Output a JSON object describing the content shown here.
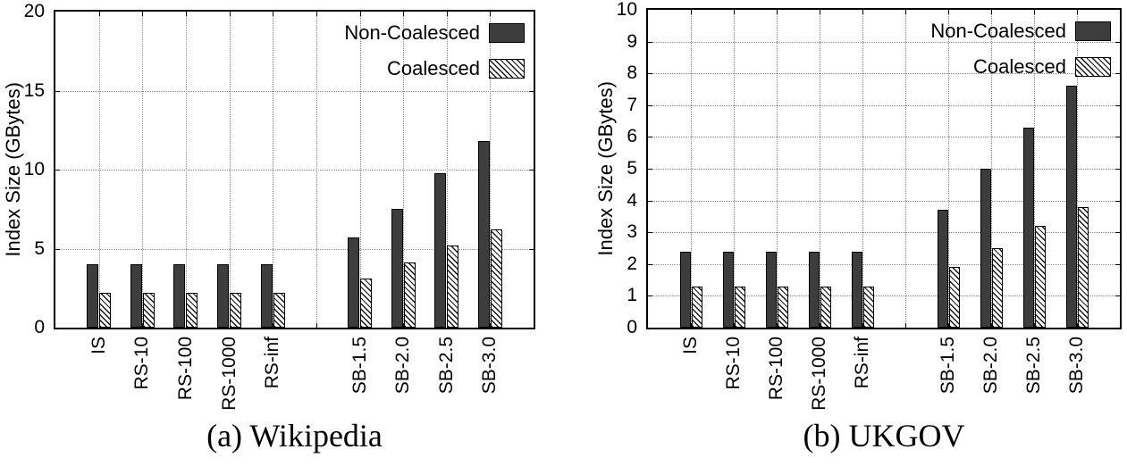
{
  "figure": {
    "background": "#ffffff",
    "legend": {
      "entries": [
        "Non-Coalesced",
        "Coalesced"
      ]
    }
  },
  "colors": {
    "bar_fill": "#3d3d3d",
    "bar_border": "#000000",
    "hatch_line": "#161616",
    "hatch_bg": "#ffffff",
    "grid_line": "#888888",
    "axis": "#000000",
    "text": "#000000"
  },
  "chart_data": [
    {
      "type": "bar",
      "title": "(a) Wikipedia",
      "xlabel": "",
      "ylabel": "Index Size (GBytes)",
      "ylim": [
        0,
        20
      ],
      "ytick_step": 5,
      "yticks": [
        0,
        5,
        10,
        15,
        20
      ],
      "grid": true,
      "legend_position": "top-right-inside",
      "categories": [
        "IS",
        "RS-10",
        "RS-100",
        "RS-1000",
        "RS-inf",
        "SB-1.5",
        "SB-2.0",
        "SB-2.5",
        "SB-3.0"
      ],
      "group_gap_after_index": 4,
      "series": [
        {
          "name": "Non-Coalesced",
          "style": "solid",
          "values": [
            4.0,
            4.0,
            4.0,
            4.0,
            4.0,
            5.7,
            7.5,
            9.8,
            11.8
          ]
        },
        {
          "name": "Coalesced",
          "style": "hatched",
          "values": [
            2.2,
            2.2,
            2.2,
            2.2,
            2.2,
            3.1,
            4.1,
            5.2,
            6.2
          ]
        }
      ]
    },
    {
      "type": "bar",
      "title": "(b) UKGOV",
      "xlabel": "",
      "ylabel": "Index Size (GBytes)",
      "ylim": [
        0,
        10
      ],
      "ytick_step": 1,
      "yticks": [
        0,
        1,
        2,
        3,
        4,
        5,
        6,
        7,
        8,
        9,
        10
      ],
      "grid": true,
      "legend_position": "top-right-inside",
      "categories": [
        "IS",
        "RS-10",
        "RS-100",
        "RS-1000",
        "RS-inf",
        "SB-1.5",
        "SB-2.0",
        "SB-2.5",
        "SB-3.0"
      ],
      "group_gap_after_index": 4,
      "series": [
        {
          "name": "Non-Coalesced",
          "style": "solid",
          "values": [
            2.4,
            2.4,
            2.4,
            2.4,
            2.4,
            3.7,
            5.0,
            6.3,
            7.6
          ]
        },
        {
          "name": "Coalesced",
          "style": "hatched",
          "values": [
            1.3,
            1.3,
            1.3,
            1.3,
            1.3,
            1.9,
            2.5,
            3.2,
            3.8
          ]
        }
      ]
    }
  ]
}
